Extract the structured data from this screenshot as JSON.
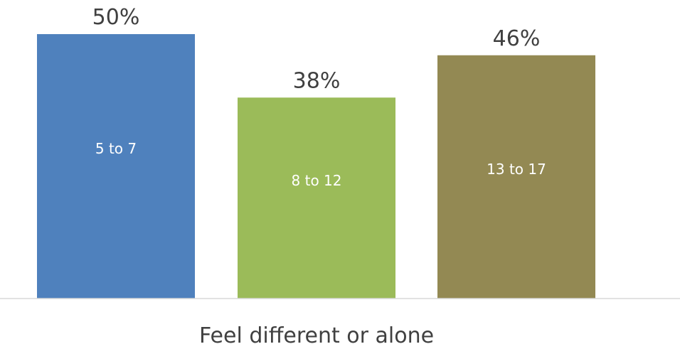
{
  "chart_data": {
    "type": "bar",
    "categories": [
      "Feel different or alone"
    ],
    "series": [
      {
        "name": "5 to 7",
        "values": [
          50
        ],
        "label": "50%",
        "color": "#4F81BD"
      },
      {
        "name": "8 to 12",
        "values": [
          38
        ],
        "label": "38%",
        "color": "#9BBB59"
      },
      {
        "name": "13 to 17",
        "values": [
          46
        ],
        "label": "46%",
        "color": "#938953"
      }
    ],
    "ylim": [
      0,
      50
    ],
    "grid": false,
    "legend": "none",
    "axis_color": "#D9D9D9"
  }
}
